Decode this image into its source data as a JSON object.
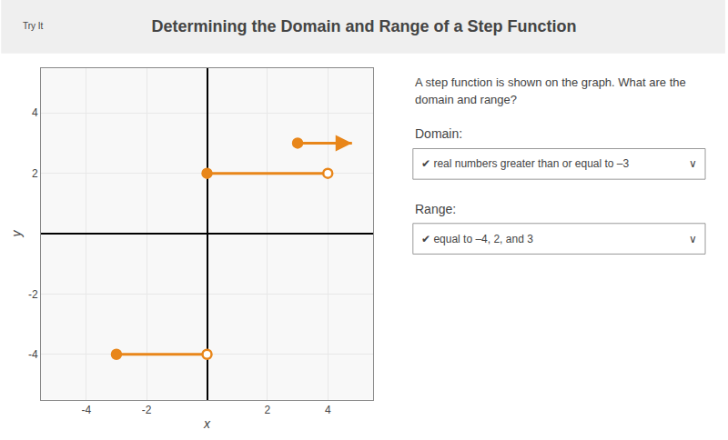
{
  "chart_data": {
    "type": "line",
    "title": "Determining the Domain and Range of a Step Function",
    "xlabel": "x",
    "ylabel": "y",
    "xlim": [
      -5.5,
      5.5
    ],
    "ylim": [
      -5.5,
      5.5
    ],
    "xticks": [
      -4,
      -2,
      2,
      4
    ],
    "yticks": [
      -4,
      -2,
      2,
      4
    ],
    "grid": true,
    "color": "#E8861A",
    "series": [
      {
        "x": [
          -3,
          0
        ],
        "values": [
          -4,
          -4
        ],
        "left_closed": true,
        "right_closed": false,
        "arrow": false
      },
      {
        "x": [
          0,
          4
        ],
        "values": [
          2,
          2
        ],
        "left_closed": true,
        "right_closed": false,
        "arrow": false
      },
      {
        "x": [
          3,
          4.8
        ],
        "values": [
          3,
          3
        ],
        "left_closed": true,
        "right_closed": false,
        "arrow": true
      }
    ],
    "annotations": {
      "badge": "Try It",
      "question": [
        "A step function is shown on the graph. What are the",
        "domain and range?"
      ],
      "fields": [
        {
          "label": "Domain:",
          "value": "✔ real numbers greater than or equal to –3",
          "chevron": "∨"
        },
        {
          "label": "Range:",
          "value": "✔ equal to –4, 2, and 3",
          "chevron": "∨"
        }
      ]
    }
  }
}
